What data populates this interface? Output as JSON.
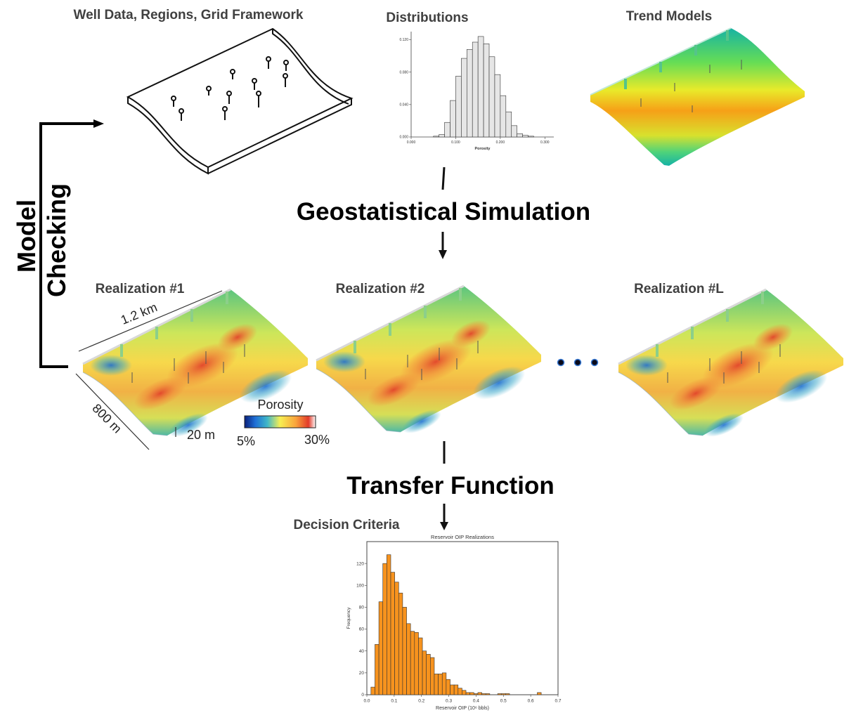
{
  "labels": {
    "well_data": "Well Data, Regions, Grid Framework",
    "distributions": "Distributions",
    "trend_models": "Trend Models",
    "geo_sim": "Geostatistical Simulation",
    "model": "Model",
    "checking": "Checking",
    "real1": "Realization #1",
    "real2": "Realization #2",
    "realL": "Realization #L",
    "dim_width": "1.2 km",
    "dim_depth": "800 m",
    "dim_thick": "20 m",
    "transfer": "Transfer Function",
    "decision": "Decision Criteria"
  },
  "colorbar": {
    "title": "Porosity",
    "min_label": "5%",
    "max_label": "30%",
    "colors": [
      "#0a1f7a",
      "#1f6fd6",
      "#3fb7c8",
      "#7fd07a",
      "#f7ef52",
      "#f9a43c",
      "#e23a2a",
      "#ffffff"
    ]
  },
  "chart_data": [
    {
      "type": "bar",
      "xlabel": "Porosity",
      "ylabel": "",
      "xlim": [
        0.0,
        0.32
      ],
      "ylim": [
        0.0,
        0.13
      ],
      "xticks": [
        "0.000",
        "0.100",
        "0.200",
        "0.300"
      ],
      "yticks": [
        "0.000",
        "0.040",
        "0.080",
        "0.120"
      ],
      "bin_width": 0.0125,
      "bin_starts": [
        0.05,
        0.0625,
        0.075,
        0.0875,
        0.1,
        0.1125,
        0.125,
        0.1375,
        0.15,
        0.1625,
        0.175,
        0.1875,
        0.2,
        0.2125,
        0.225,
        0.2375,
        0.25,
        0.2625
      ],
      "values": [
        0.001,
        0.003,
        0.018,
        0.045,
        0.075,
        0.097,
        0.108,
        0.117,
        0.124,
        0.115,
        0.099,
        0.077,
        0.051,
        0.031,
        0.014,
        0.004,
        0.002,
        0.001
      ],
      "colors": {
        "bar": "#e6e6e6",
        "edge": "#333333"
      }
    },
    {
      "type": "bar",
      "title": "Reservoir OIP Realizations",
      "xlabel": "Reservoir OIP (10⁶ bbls)",
      "ylabel": "Frequency",
      "xlim": [
        0.0,
        0.7
      ],
      "ylim": [
        0,
        140
      ],
      "xticks": [
        "0.0",
        "0.1",
        "0.2",
        "0.3",
        "0.4",
        "0.5",
        "0.6",
        "0.7"
      ],
      "yticks": [
        "0",
        "20",
        "40",
        "60",
        "80",
        "100",
        "120"
      ],
      "bin_width": 0.0145,
      "bin_starts": [
        0.015,
        0.0295,
        0.044,
        0.0585,
        0.073,
        0.0875,
        0.102,
        0.1165,
        0.131,
        0.1455,
        0.16,
        0.1745,
        0.189,
        0.2035,
        0.218,
        0.2325,
        0.247,
        0.2615,
        0.276,
        0.2905,
        0.305,
        0.3195,
        0.334,
        0.3485,
        0.363,
        0.3775,
        0.392,
        0.4065,
        0.421,
        0.4355,
        0.45,
        0.4645,
        0.479,
        0.4935,
        0.508,
        0.5225,
        0.537,
        0.5515,
        0.566,
        0.5805,
        0.595,
        0.6095,
        0.624,
        0.6385
      ],
      "values": [
        7,
        46,
        85,
        120,
        128,
        112,
        103,
        93,
        80,
        65,
        58,
        57,
        52,
        40,
        37,
        34,
        19,
        19,
        20,
        14,
        9,
        9,
        6,
        4,
        2,
        2,
        1,
        2,
        1,
        1,
        0,
        0,
        1,
        1,
        1,
        0,
        0,
        0,
        0,
        0,
        0,
        0,
        2,
        0
      ],
      "colors": {
        "bar": "#f7931e",
        "edge": "#333333"
      }
    }
  ]
}
